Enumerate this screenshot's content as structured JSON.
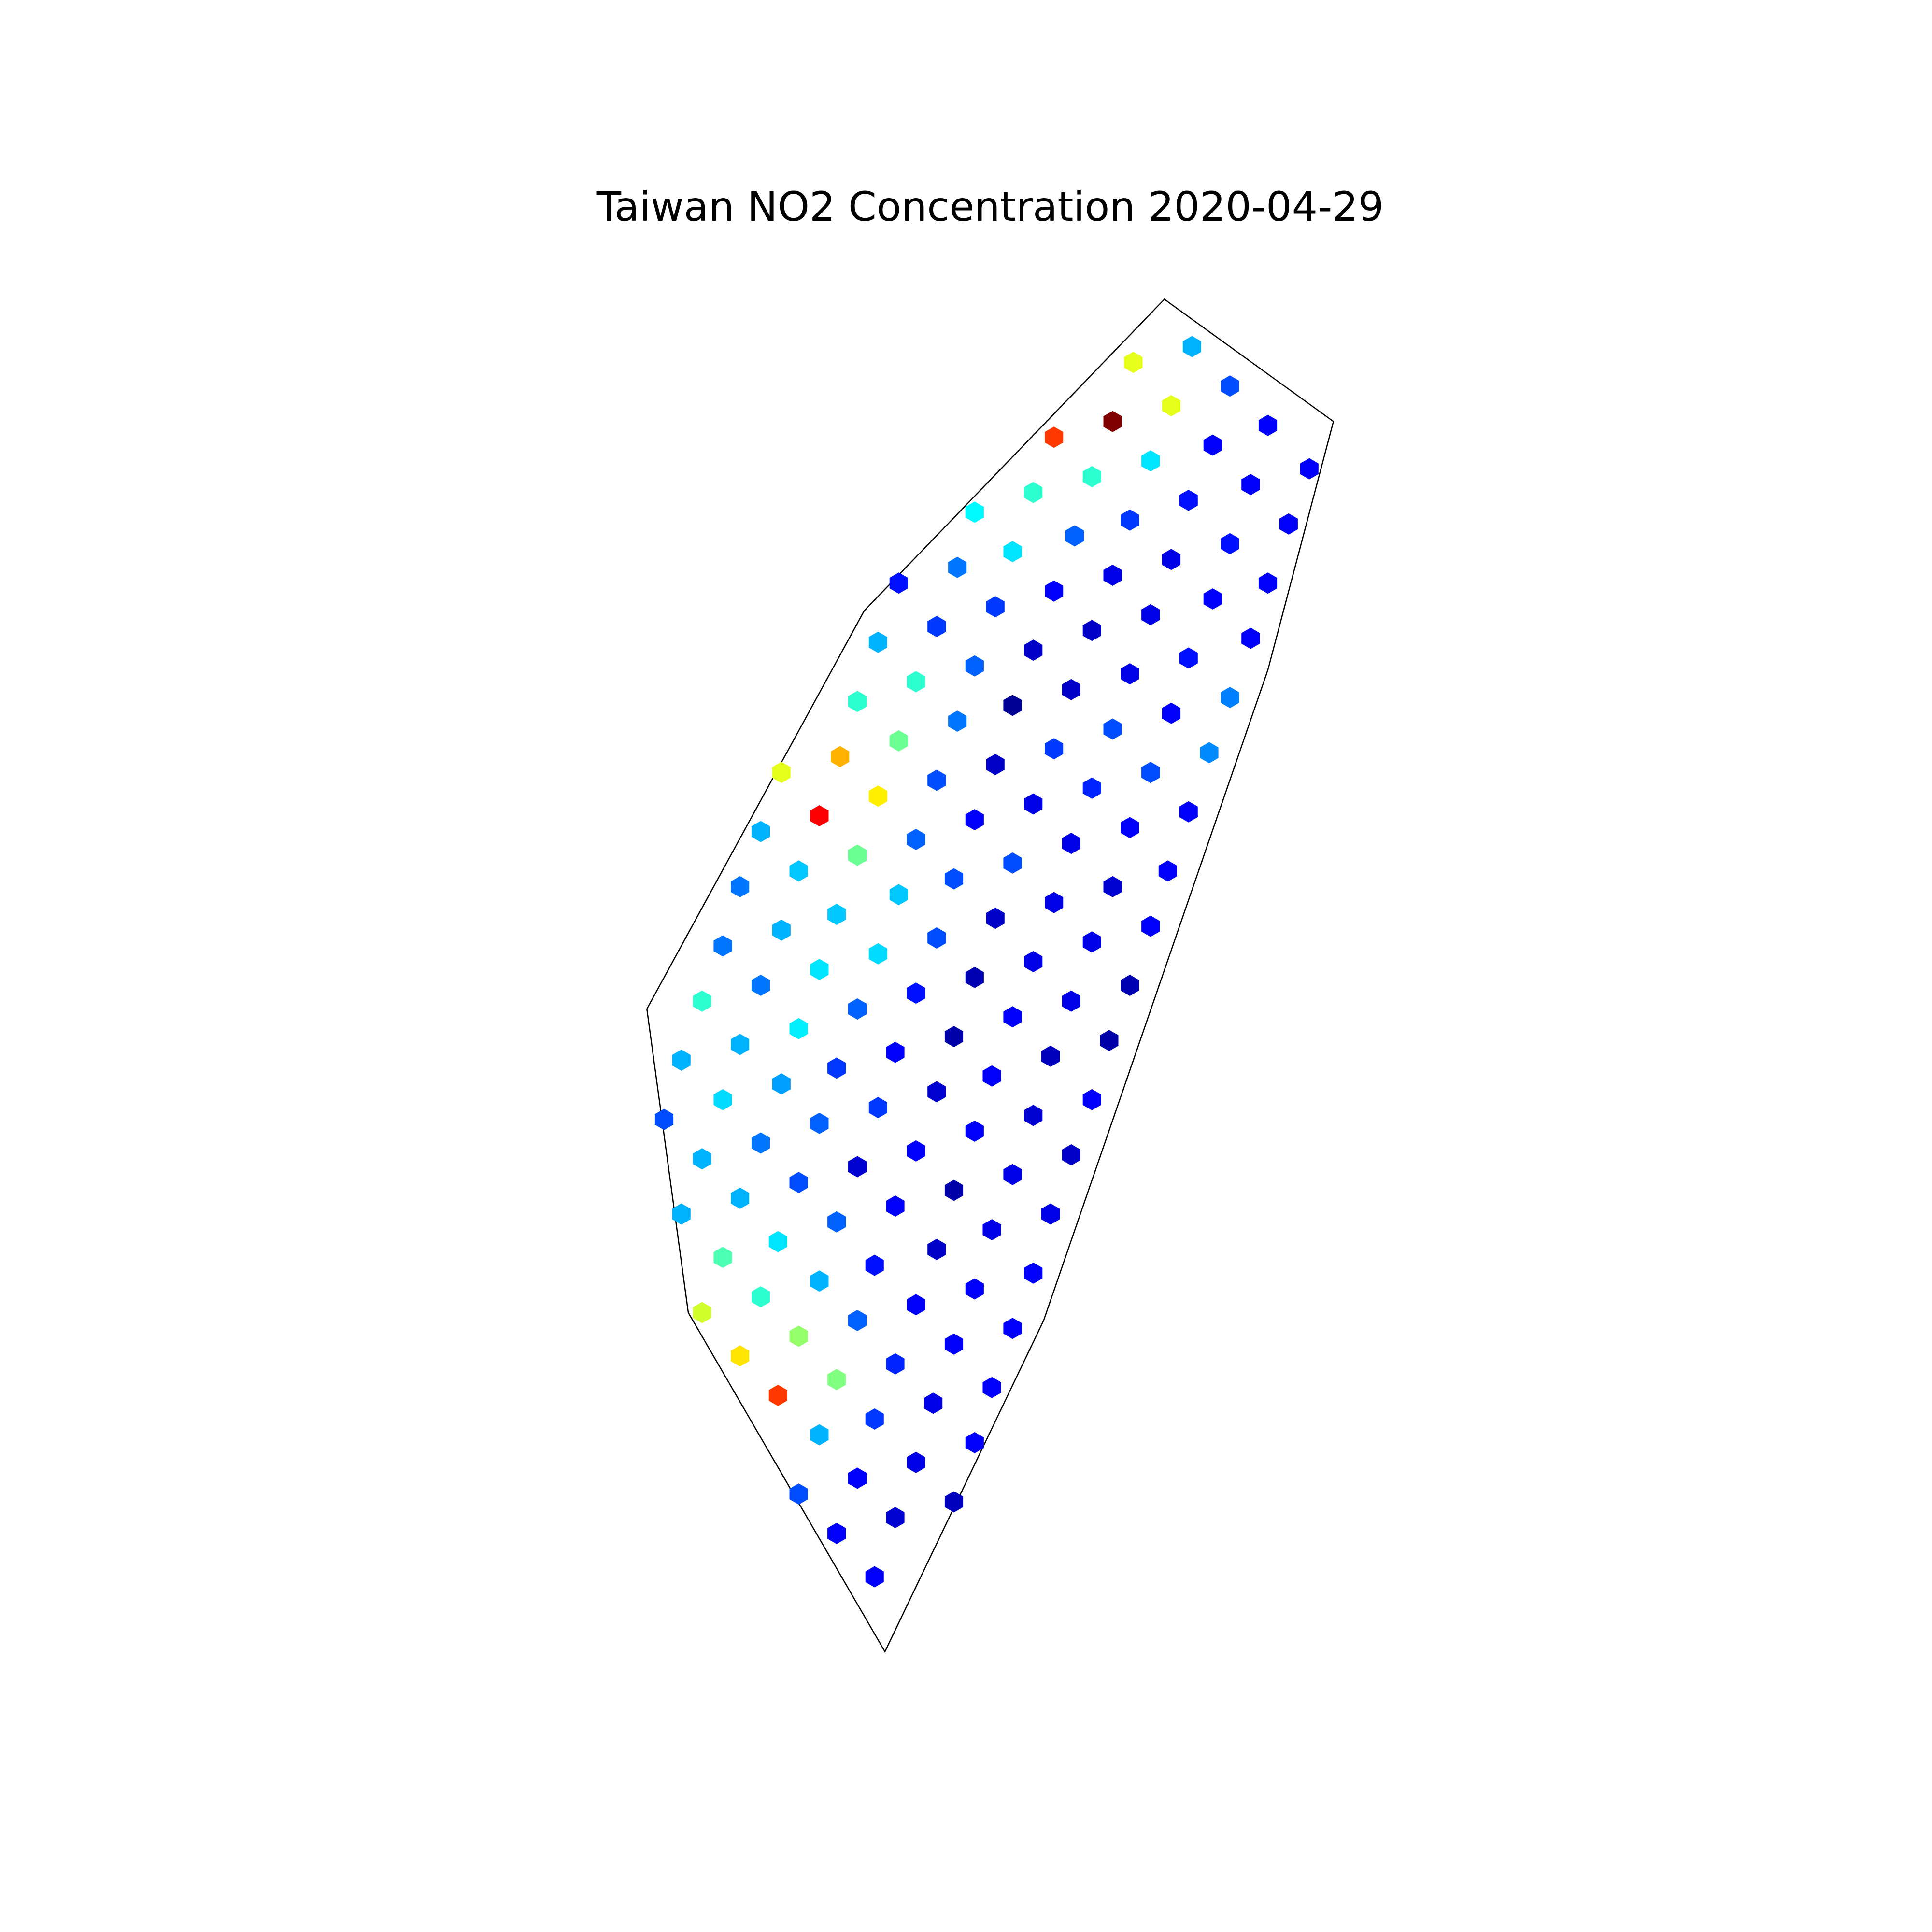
{
  "chart_data": {
    "type": "hexbin",
    "title": "Taiwan NO2 Concentration 2020-04-29",
    "colormap": "jet",
    "clim": [
      0,
      1
    ],
    "xlim": [
      118.125,
      123.725
    ],
    "ylim": [
      21.159,
      26.059
    ],
    "outline": {
      "x": [
        121.5,
        121.99,
        121.8,
        121.15,
        120.69,
        120.12,
        120.0,
        120.63
      ],
      "y": [
        25.3,
        24.99,
        24.36,
        22.71,
        21.87,
        22.73,
        23.5,
        24.51
      ]
    },
    "x": [
      121.58,
      121.41,
      121.69,
      121.52,
      121.35,
      121.18,
      121.8,
      121.64,
      121.46,
      121.29,
      121.12,
      120.95,
      121.92,
      121.75,
      121.57,
      121.4,
      121.24,
      121.06,
      120.9,
      120.73,
      121.86,
      121.69,
      121.52,
      121.35,
      121.18,
      121.01,
      120.84,
      120.67,
      121.8,
      121.64,
      121.46,
      121.29,
      121.12,
      120.95,
      120.78,
      120.61,
      121.75,
      121.57,
      121.4,
      121.23,
      121.06,
      120.9,
      120.73,
      120.56,
      120.39,
      121.69,
      121.52,
      121.35,
      121.18,
      121.01,
      120.84,
      120.67,
      120.5,
      120.33,
      121.63,
      121.46,
      121.29,
      121.12,
      120.95,
      120.78,
      120.61,
      120.44,
      120.27,
      121.57,
      121.4,
      121.23,
      121.06,
      120.89,
      120.73,
      120.55,
      120.39,
      120.22,
      121.51,
      121.35,
      121.18,
      121.01,
      120.84,
      120.67,
      120.5,
      120.33,
      120.16,
      121.46,
      121.29,
      121.12,
      120.95,
      120.78,
      120.61,
      120.44,
      120.27,
      120.1,
      121.4,
      121.23,
      121.06,
      120.89,
      120.72,
      120.55,
      120.39,
      120.22,
      120.05,
      121.34,
      121.17,
      121.0,
      120.84,
      120.67,
      120.5,
      120.33,
      120.16,
      121.29,
      121.12,
      120.95,
      120.78,
      120.61,
      120.44,
      120.27,
      120.1,
      121.23,
      121.06,
      120.89,
      120.72,
      120.55,
      120.38,
      120.22,
      121.17,
      121.0,
      120.84,
      120.66,
      120.5,
      120.33,
      120.16,
      121.12,
      120.95,
      120.78,
      120.61,
      120.44,
      120.27,
      121.06,
      120.89,
      120.72,
      120.55,
      120.38,
      121.0,
      120.83,
      120.66,
      120.5,
      120.95,
      120.78,
      120.61,
      120.44,
      120.89,
      120.72,
      120.55,
      120.66
    ],
    "y": [
      25.18,
      25.14,
      25.08,
      25.03,
      24.99,
      24.95,
      24.98,
      24.93,
      24.89,
      24.85,
      24.81,
      24.76,
      24.87,
      24.83,
      24.79,
      24.74,
      24.7,
      24.66,
      24.62,
      24.58,
      24.73,
      24.68,
      24.64,
      24.6,
      24.56,
      24.52,
      24.47,
      24.43,
      24.58,
      24.54,
      24.5,
      24.46,
      24.41,
      24.37,
      24.33,
      24.28,
      24.44,
      24.39,
      24.35,
      24.31,
      24.27,
      24.23,
      24.18,
      24.14,
      24.1,
      24.29,
      24.25,
      24.21,
      24.16,
      24.12,
      24.08,
      24.04,
      23.99,
      23.95,
      24.15,
      24.1,
      24.06,
      24.02,
      23.98,
      23.93,
      23.89,
      23.85,
      23.81,
      24.0,
      23.96,
      23.92,
      23.87,
      23.83,
      23.79,
      23.74,
      23.7,
      23.66,
      23.85,
      23.81,
      23.77,
      23.73,
      23.68,
      23.64,
      23.6,
      23.56,
      23.52,
      23.71,
      23.67,
      23.62,
      23.58,
      23.54,
      23.5,
      23.45,
      23.41,
      23.37,
      23.56,
      23.52,
      23.48,
      23.43,
      23.39,
      23.35,
      23.31,
      23.27,
      23.22,
      23.42,
      23.38,
      23.33,
      23.29,
      23.25,
      23.21,
      23.16,
      23.12,
      23.27,
      23.23,
      23.19,
      23.14,
      23.1,
      23.06,
      23.02,
      22.98,
      23.13,
      23.08,
      23.04,
      23.0,
      22.96,
      22.91,
      22.87,
      22.98,
      22.94,
      22.89,
      22.85,
      22.81,
      22.77,
      22.73,
      22.83,
      22.79,
      22.75,
      22.71,
      22.67,
      22.62,
      22.69,
      22.65,
      22.6,
      22.56,
      22.52,
      22.54,
      22.5,
      22.46,
      22.42,
      22.4,
      22.35,
      22.31,
      22.27,
      22.25,
      22.21,
      22.17,
      22.06
    ],
    "values": [
      0.3,
      0.6,
      0.2,
      0.6,
      1.0,
      0.82,
      0.12,
      0.12,
      0.35,
      0.42,
      0.42,
      0.37,
      0.12,
      0.12,
      0.14,
      0.18,
      0.22,
      0.35,
      0.24,
      0.14,
      0.12,
      0.14,
      0.1,
      0.1,
      0.12,
      0.18,
      0.18,
      0.3,
      0.12,
      0.12,
      0.1,
      0.07,
      0.07,
      0.22,
      0.42,
      0.42,
      0.12,
      0.14,
      0.1,
      0.07,
      0.02,
      0.24,
      0.48,
      0.7,
      0.6,
      0.25,
      0.12,
      0.2,
      0.18,
      0.07,
      0.2,
      0.64,
      0.88,
      0.3,
      0.26,
      0.2,
      0.16,
      0.1,
      0.12,
      0.22,
      0.48,
      0.32,
      0.24,
      0.12,
      0.12,
      0.1,
      0.2,
      0.2,
      0.32,
      0.32,
      0.3,
      0.24,
      0.12,
      0.08,
      0.1,
      0.07,
      0.2,
      0.34,
      0.35,
      0.24,
      0.42,
      0.12,
      0.1,
      0.1,
      0.05,
      0.14,
      0.22,
      0.36,
      0.3,
      0.3,
      0.05,
      0.1,
      0.12,
      0.04,
      0.12,
      0.18,
      0.28,
      0.34,
      0.2,
      0.04,
      0.06,
      0.12,
      0.08,
      0.18,
      0.22,
      0.24,
      0.3,
      0.12,
      0.08,
      0.12,
      0.12,
      0.08,
      0.2,
      0.3,
      0.3,
      0.07,
      0.1,
      0.04,
      0.12,
      0.22,
      0.35,
      0.45,
      0.1,
      0.1,
      0.07,
      0.14,
      0.3,
      0.42,
      0.58,
      0.12,
      0.12,
      0.12,
      0.22,
      0.52,
      0.65,
      0.12,
      0.12,
      0.16,
      0.5,
      0.82,
      0.12,
      0.1,
      0.18,
      0.3,
      0.12,
      0.1,
      0.12,
      0.2,
      0.06,
      0.08,
      0.12,
      0.12
    ]
  }
}
